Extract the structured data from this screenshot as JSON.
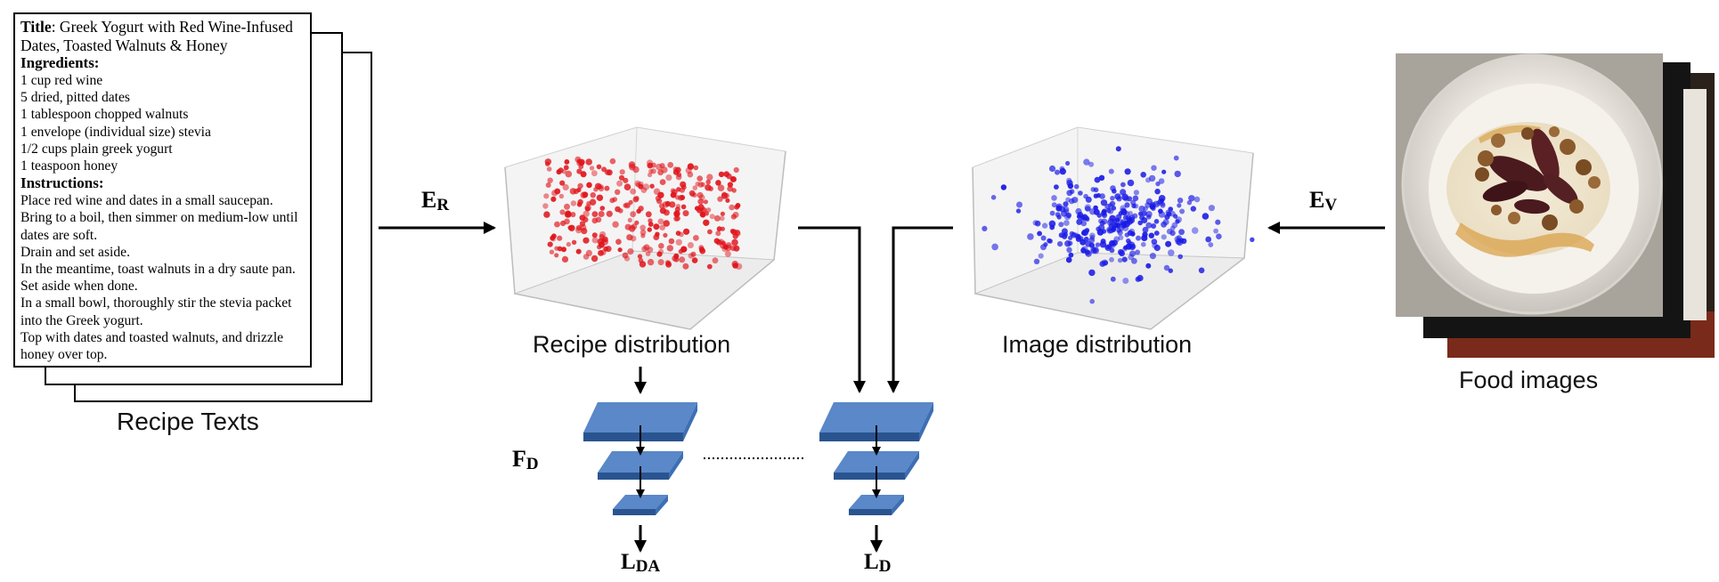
{
  "recipe_card": {
    "title_label": "Title",
    "title_text_1": ": Greek Yogurt with Red Wine-Infused",
    "title_text_2": "Dates, Toasted Walnuts & Honey",
    "ingredients_heading": "Ingredients:",
    "ingredients": [
      "1 cup red wine",
      "5 dried, pitted dates",
      "1 tablespoon chopped walnuts",
      "1 envelope (individual size) stevia",
      "1/2 cups plain greek yogurt",
      "1 teaspoon honey"
    ],
    "instructions_heading": "Instructions:",
    "instructions": [
      "Place red wine and dates in a small saucepan.",
      "Bring to a boil, then simmer on medium-low until",
      "dates are soft.",
      "Drain and set aside.",
      "In the meantime, toast walnuts in a dry saute pan.",
      "Set aside when done.",
      "In a small bowl, thoroughly stir the stevia packet",
      "into the Greek yogurt.",
      "Top with dates and toasted walnuts, and drizzle",
      "honey over top."
    ]
  },
  "labels": {
    "recipe_texts": "Recipe Texts",
    "recipe_distribution": "Recipe distribution",
    "image_distribution": "Image distribution",
    "food_images": "Food images"
  },
  "math": {
    "er_main": "E",
    "er_sub": "R",
    "ev_main": "E",
    "ev_sub": "V",
    "fd_main": "F",
    "fd_sub": "D",
    "lda_main": "L",
    "lda_sub": "DA",
    "ld_main": "L",
    "ld_sub": "D"
  },
  "colors": {
    "recipe_points": "#e0141b",
    "image_points": "#1a1ae6",
    "layer_fill": "#3d6fb4",
    "layer_side": "#2a5490",
    "layer_top": "#5a88c8",
    "panel_edge": "#cfcfcf"
  },
  "icons": {
    "food_photo": "bowl-of-yogurt-with-dates-and-walnuts-photo"
  }
}
